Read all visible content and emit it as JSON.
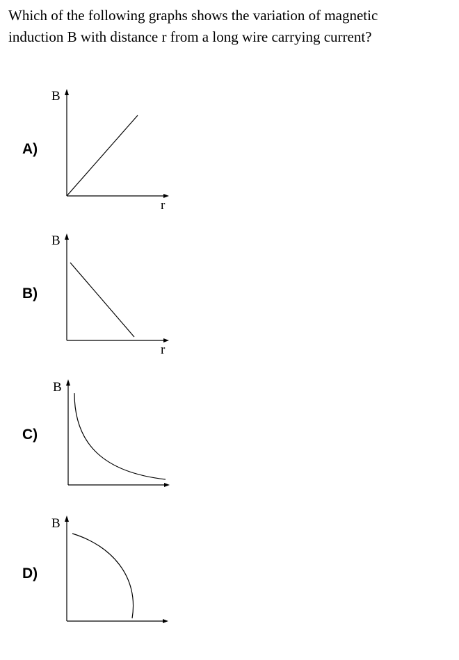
{
  "question": {
    "lines": [
      "Which of the following graphs shows the variation of magnetic",
      "induction B with distance r from a long wire carrying current?"
    ]
  },
  "options": [
    {
      "label": "A)",
      "y_axis": "B",
      "x_axis": "r"
    },
    {
      "label": "B)",
      "y_axis": "B",
      "x_axis": "r"
    },
    {
      "label": "C)",
      "y_axis": "B"
    },
    {
      "label": "D)",
      "y_axis": "B"
    }
  ]
}
